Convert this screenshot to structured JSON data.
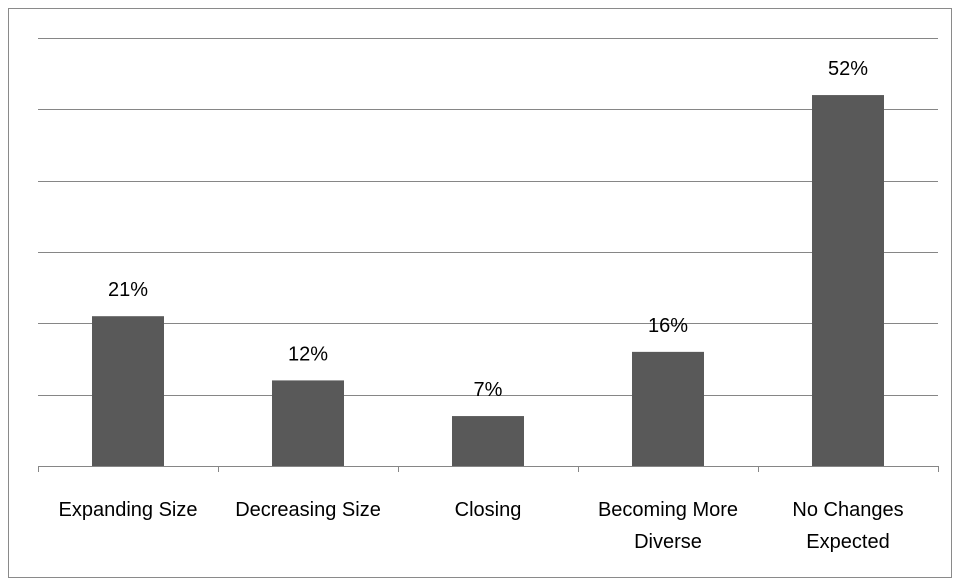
{
  "chart_data": {
    "type": "bar",
    "categories": [
      "Expanding Size",
      "Decreasing Size",
      "Closing",
      "Becoming More Diverse",
      "No Changes Expected"
    ],
    "category_lines": [
      [
        "Expanding Size"
      ],
      [
        "Decreasing Size"
      ],
      [
        "Closing"
      ],
      [
        "Becoming More",
        "Diverse"
      ],
      [
        "No Changes",
        "Expected"
      ]
    ],
    "values": [
      21,
      12,
      7,
      16,
      52
    ],
    "data_labels": [
      "21%",
      "12%",
      "7%",
      "16%",
      "52%"
    ],
    "title": "",
    "xlabel": "",
    "ylabel": "",
    "ylim": [
      0,
      60
    ],
    "ytick_step": 10,
    "grid": true,
    "legend": "none",
    "bar_color": "#595959",
    "grid_color": "#868686"
  }
}
